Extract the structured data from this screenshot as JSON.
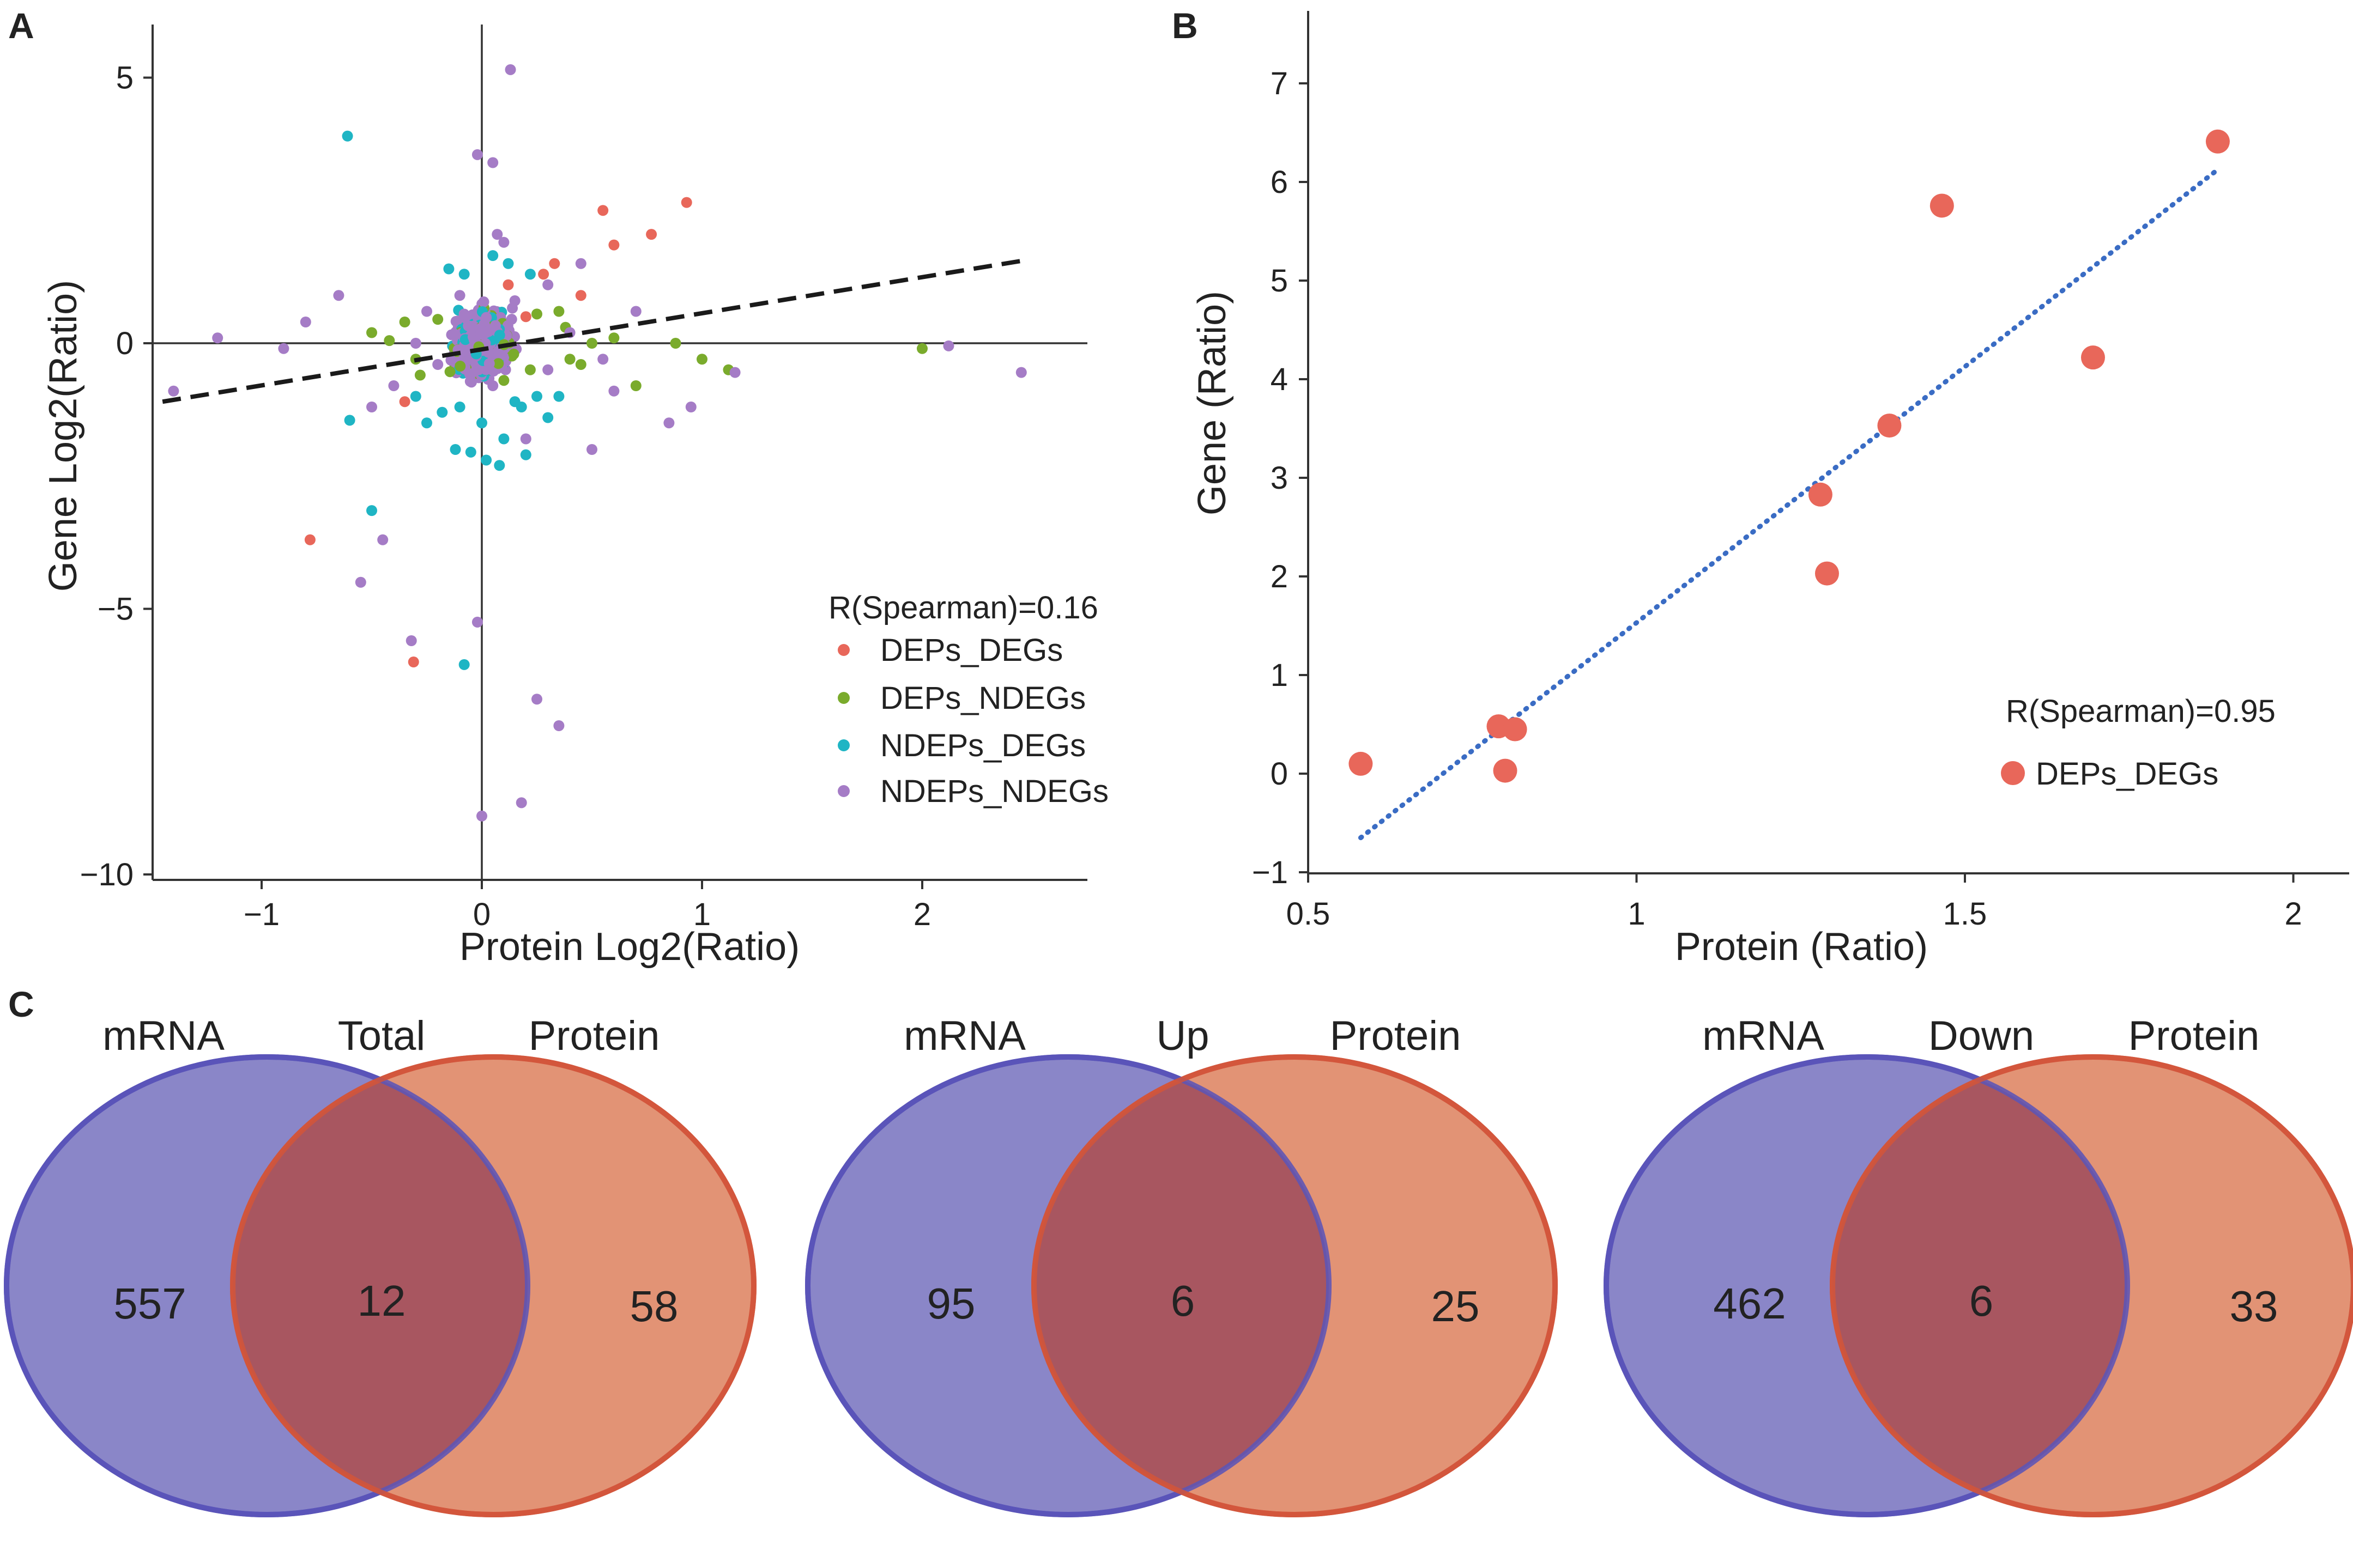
{
  "panels": {
    "a": "A",
    "b": "B",
    "c": "C"
  },
  "colors": {
    "DEPs_DEGs": "#e8675a",
    "DEPs_NDEGs": "#7aab2c",
    "NDEPs_DEGs": "#1fb5c4",
    "NDEPs_NDEGs": "#a57cc6",
    "trend_a": "#1a1a1a",
    "trend_b": "#3a6cc4",
    "venn_mrna_fill": "#8a86c8",
    "venn_mrna_stroke": "#5b55b8",
    "venn_protein_fill": "#e08a6a",
    "venn_protein_stroke": "#d2553a",
    "axis": "#333333"
  },
  "chart_data": [
    {
      "id": "A",
      "type": "scatter",
      "title": "",
      "xlabel": "Protein Log2(Ratio)",
      "ylabel": "Gene Log2(Ratio)",
      "xlim": [
        -1.5,
        2.8
      ],
      "ylim": [
        -10,
        6
      ],
      "xticks": [
        -1,
        0,
        1,
        2
      ],
      "xtick_labels": [
        "−1",
        "0",
        "1",
        "2"
      ],
      "yticks": [
        5,
        0,
        -5,
        -10
      ],
      "ytick_labels": [
        "5",
        "0",
        "−5",
        "−10"
      ],
      "annotation": "R(Spearman)=0.16",
      "trendline": {
        "x": [
          -1.45,
          2.45
        ],
        "y": [
          -1.1,
          1.55
        ],
        "style": "dashed"
      },
      "series": [
        {
          "name": "DEPs_DEGs",
          "points": [
            [
              0.55,
              2.5
            ],
            [
              0.93,
              2.65
            ],
            [
              0.77,
              2.05
            ],
            [
              0.6,
              1.85
            ],
            [
              0.33,
              1.5
            ],
            [
              0.28,
              1.3
            ],
            [
              0.12,
              1.1
            ],
            [
              -0.78,
              -3.7
            ],
            [
              -0.31,
              -6.0
            ],
            [
              -0.35,
              -1.1
            ],
            [
              0.45,
              0.9
            ],
            [
              0.2,
              0.5
            ]
          ]
        },
        {
          "name": "DEPs_NDEGs",
          "points": [
            [
              2.0,
              -0.1
            ],
            [
              0.7,
              -0.8
            ],
            [
              0.88,
              0.0
            ],
            [
              0.5,
              0.0
            ],
            [
              1.12,
              -0.5
            ],
            [
              -0.35,
              0.4
            ],
            [
              -0.42,
              0.05
            ],
            [
              0.38,
              0.3
            ],
            [
              0.45,
              -0.4
            ],
            [
              -0.28,
              -0.6
            ],
            [
              0.25,
              0.55
            ],
            [
              1.0,
              -0.3
            ],
            [
              0.6,
              0.1
            ],
            [
              0.4,
              -0.3
            ],
            [
              0.22,
              -0.5
            ],
            [
              -0.2,
              0.45
            ],
            [
              0.35,
              0.6
            ],
            [
              -0.3,
              -0.3
            ],
            [
              -0.5,
              0.2
            ],
            [
              0.1,
              -0.7
            ]
          ]
        },
        {
          "name": "NDEPs_DEGs",
          "points": [
            [
              -0.61,
              3.9
            ],
            [
              -0.5,
              -3.15
            ],
            [
              -0.6,
              -1.45
            ],
            [
              -0.08,
              -6.05
            ],
            [
              0.12,
              1.5
            ],
            [
              -0.15,
              1.4
            ],
            [
              0.05,
              1.65
            ],
            [
              0.22,
              1.3
            ],
            [
              -0.08,
              1.3
            ],
            [
              0.18,
              -1.2
            ],
            [
              -0.18,
              -1.3
            ],
            [
              0.0,
              -1.5
            ],
            [
              0.1,
              -1.8
            ],
            [
              -0.05,
              -2.05
            ],
            [
              0.25,
              -1.0
            ],
            [
              0.3,
              -1.4
            ],
            [
              -0.25,
              -1.5
            ],
            [
              0.08,
              -2.3
            ],
            [
              -0.12,
              -2.0
            ],
            [
              0.2,
              -2.1
            ],
            [
              0.02,
              -2.2
            ],
            [
              -0.3,
              -1.0
            ],
            [
              0.35,
              -1.0
            ],
            [
              -0.1,
              -1.2
            ],
            [
              0.15,
              -1.1
            ]
          ]
        },
        {
          "name": "NDEPs_NDEGs",
          "points": [
            [
              -0.55,
              -4.5
            ],
            [
              -0.45,
              -3.7
            ],
            [
              -0.32,
              -5.6
            ],
            [
              0.13,
              5.15
            ],
            [
              -0.02,
              3.55
            ],
            [
              0.05,
              3.4
            ],
            [
              0.07,
              2.05
            ],
            [
              0.25,
              -6.7
            ],
            [
              0.35,
              -7.2
            ],
            [
              0.18,
              -8.65
            ],
            [
              0.0,
              -8.9
            ],
            [
              -0.02,
              -5.25
            ],
            [
              2.45,
              -0.55
            ],
            [
              2.12,
              -0.05
            ],
            [
              1.15,
              -0.55
            ],
            [
              0.95,
              -1.2
            ],
            [
              0.85,
              -1.5
            ],
            [
              -1.4,
              -0.9
            ],
            [
              -1.2,
              0.1
            ],
            [
              -0.9,
              -0.1
            ],
            [
              -0.65,
              0.9
            ],
            [
              -0.8,
              0.4
            ],
            [
              -0.3,
              0.0
            ],
            [
              0.3,
              -0.5
            ],
            [
              0.4,
              0.2
            ],
            [
              0.1,
              1.9
            ],
            [
              0.45,
              1.5
            ],
            [
              0.2,
              -1.8
            ],
            [
              0.5,
              -2.0
            ],
            [
              -0.5,
              -1.2
            ],
            [
              0.7,
              0.6
            ],
            [
              -0.2,
              -0.4
            ],
            [
              0.15,
              0.8
            ],
            [
              -0.1,
              0.9
            ],
            [
              0.05,
              -0.8
            ],
            [
              -0.25,
              0.6
            ],
            [
              0.6,
              -0.9
            ],
            [
              -0.4,
              -0.8
            ],
            [
              0.3,
              1.1
            ],
            [
              0.55,
              -0.3
            ]
          ]
        }
      ]
    },
    {
      "id": "B",
      "type": "scatter",
      "title": "",
      "xlabel": "Protein (Ratio)",
      "ylabel": "Gene (Ratio)",
      "xlim": [
        0.5,
        2.08
      ],
      "ylim": [
        -1,
        7.5
      ],
      "xticks": [
        0.5,
        1,
        1.5,
        2
      ],
      "xtick_labels": [
        "0.5",
        "1",
        "1.5",
        "2"
      ],
      "yticks": [
        -1,
        0,
        1,
        2,
        3,
        4,
        5,
        6,
        7
      ],
      "ytick_labels": [
        "−1",
        "0",
        "1",
        "2",
        "3",
        "4",
        "5",
        "6",
        "7"
      ],
      "annotation": "R(Spearman)=0.95",
      "trendline": {
        "x": [
          0.58,
          1.88
        ],
        "y": [
          -0.65,
          6.1
        ],
        "style": "dotted"
      },
      "series": [
        {
          "name": "DEPs_DEGs",
          "points": [
            [
              0.58,
              0.1
            ],
            [
              0.79,
              0.48
            ],
            [
              0.815,
              0.45
            ],
            [
              0.8,
              0.03
            ],
            [
              1.28,
              2.83
            ],
            [
              1.29,
              2.03
            ],
            [
              1.385,
              3.53
            ],
            [
              1.465,
              5.76
            ],
            [
              1.695,
              4.22
            ],
            [
              1.885,
              6.41
            ]
          ]
        }
      ]
    }
  ],
  "venn": [
    {
      "title": "Total",
      "left_label": "mRNA",
      "right_label": "Protein",
      "left_only": "557",
      "overlap": "12",
      "right_only": "58"
    },
    {
      "title": "Up",
      "left_label": "mRNA",
      "right_label": "Protein",
      "left_only": "95",
      "overlap": "6",
      "right_only": "25"
    },
    {
      "title": "Down",
      "left_label": "mRNA",
      "right_label": "Protein",
      "left_only": "462",
      "overlap": "6",
      "right_only": "33"
    }
  ]
}
